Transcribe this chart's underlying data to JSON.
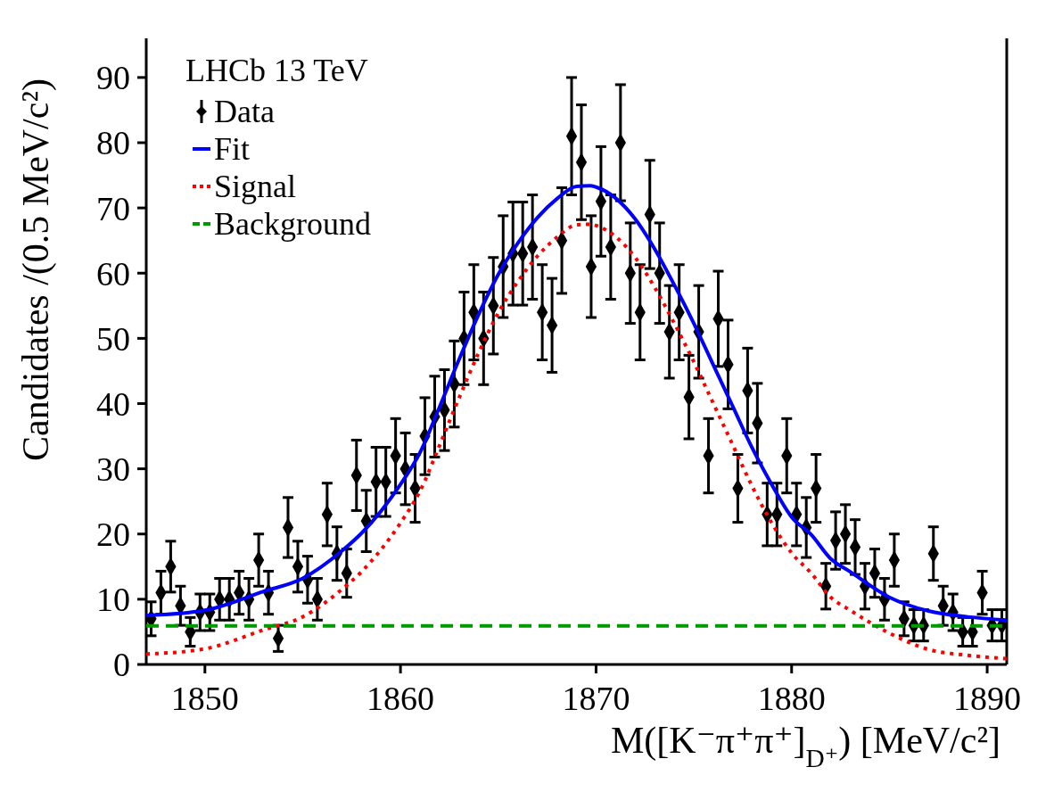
{
  "chart_data": {
    "type": "line",
    "xlabel": "M([K⁻π⁺π⁺]$_{D⁺}$) [MeV/c²]",
    "ylabel": "Candidates /(0.5 MeV/c²)",
    "legend_title": "LHCb 13 TeV",
    "legend": "top left",
    "grid": false,
    "xlim": [
      1847,
      1891
    ],
    "xticks": [
      1850,
      1860,
      1870,
      1880,
      1890
    ],
    "ylim": [
      0,
      96
    ],
    "yticks": [
      0,
      10,
      20,
      30,
      40,
      50,
      60,
      70,
      80,
      90
    ],
    "series": [
      {
        "name": "Data",
        "type": "scatter",
        "color": "#000000",
        "marker": "diamond",
        "x": [
          1847.25,
          1847.75,
          1848.25,
          1848.75,
          1849.25,
          1849.75,
          1850.25,
          1850.75,
          1851.25,
          1851.75,
          1852.25,
          1852.75,
          1853.25,
          1853.75,
          1854.25,
          1854.75,
          1855.25,
          1855.75,
          1856.25,
          1856.75,
          1857.25,
          1857.75,
          1858.25,
          1858.75,
          1859.25,
          1859.75,
          1860.25,
          1860.75,
          1861.25,
          1861.75,
          1862.25,
          1862.75,
          1863.25,
          1863.75,
          1864.25,
          1864.75,
          1865.25,
          1865.75,
          1866.25,
          1866.75,
          1867.25,
          1867.75,
          1868.25,
          1868.75,
          1869.25,
          1869.75,
          1870.25,
          1870.75,
          1871.25,
          1871.75,
          1872.25,
          1872.75,
          1873.25,
          1873.75,
          1874.25,
          1874.75,
          1875.25,
          1875.75,
          1876.25,
          1876.75,
          1877.25,
          1877.75,
          1878.25,
          1878.75,
          1879.25,
          1879.75,
          1880.25,
          1880.75,
          1881.25,
          1881.75,
          1882.25,
          1882.75,
          1883.25,
          1883.75,
          1884.25,
          1884.75,
          1885.25,
          1885.75,
          1886.25,
          1886.75,
          1887.25,
          1887.75,
          1888.25,
          1888.75,
          1889.25,
          1889.75,
          1890.25,
          1890.75
        ],
        "values": [
          7,
          11,
          15,
          9,
          5,
          8,
          8,
          10,
          10,
          11,
          10,
          16,
          11,
          4,
          21,
          15,
          13,
          10,
          23,
          17,
          14,
          29,
          22,
          28,
          28,
          32,
          30,
          27,
          35,
          38,
          39,
          43,
          50,
          54,
          50,
          55,
          61,
          63,
          63,
          64,
          54,
          52,
          65,
          81,
          77,
          61,
          71,
          64,
          80,
          60,
          54,
          69,
          60,
          51,
          54,
          41,
          51,
          32,
          53,
          46,
          27,
          42,
          37,
          23,
          23,
          32,
          23,
          21,
          27,
          12,
          19,
          20,
          18,
          12,
          14,
          10,
          16,
          7,
          6,
          6,
          17,
          9,
          8,
          5,
          5,
          11,
          6,
          6
        ],
        "errors": [
          2.6,
          3.3,
          3.9,
          3,
          2.2,
          2.8,
          2.8,
          3.2,
          3.2,
          3.3,
          3.2,
          4,
          3.3,
          2,
          4.6,
          3.9,
          3.6,
          3.2,
          4.8,
          4.1,
          3.7,
          5.4,
          4.7,
          5.3,
          5.3,
          5.7,
          5.5,
          5.2,
          5.9,
          6.2,
          6.2,
          6.6,
          7.1,
          7.3,
          7.1,
          7.4,
          7.8,
          7.9,
          7.9,
          8,
          7.3,
          7.2,
          8.1,
          9,
          8.8,
          7.8,
          8.4,
          8,
          8.9,
          7.7,
          7.3,
          8.3,
          7.7,
          7.1,
          7.3,
          6.4,
          7.1,
          5.7,
          7.3,
          6.8,
          5.2,
          6.5,
          6.1,
          4.8,
          4.8,
          5.7,
          4.8,
          4.6,
          5.2,
          3.5,
          4.4,
          4.5,
          4.2,
          3.5,
          3.7,
          3.2,
          4,
          2.6,
          2.4,
          2.4,
          4.1,
          3,
          2.8,
          2.2,
          2.2,
          3.3,
          2.4,
          2.4
        ]
      },
      {
        "name": "Fit",
        "color": "#0000ff",
        "line_style": "solid",
        "x": [
          1847,
          1850,
          1853,
          1855,
          1857,
          1858,
          1859,
          1860,
          1861,
          1862,
          1863,
          1864,
          1865,
          1866,
          1867,
          1868,
          1869,
          1869.7,
          1870,
          1871,
          1872,
          1873,
          1874,
          1875,
          1876,
          1877,
          1878,
          1879,
          1880,
          1881,
          1882,
          1883,
          1885,
          1887,
          1889,
          1891
        ],
        "values": [
          7.5,
          8.3,
          11.2,
          13.2,
          17.4,
          20.1,
          23.5,
          27.6,
          32.5,
          39.5,
          46.8,
          53.7,
          59.8,
          64.6,
          68.5,
          71.4,
          73.3,
          73.4,
          73.2,
          71.5,
          68.3,
          63.7,
          58.2,
          52.3,
          45.9,
          39.5,
          33.1,
          27.5,
          22.6,
          19.9,
          16.2,
          14.2,
          10.3,
          8.2,
          7.3,
          6.8
        ]
      },
      {
        "name": "Signal",
        "color": "#ff0000",
        "line_style": "dotted",
        "x": [
          1847,
          1850,
          1853,
          1855,
          1857,
          1858,
          1859,
          1860,
          1861,
          1862,
          1863,
          1864,
          1865,
          1866,
          1867,
          1868,
          1869,
          1869.7,
          1870,
          1871,
          1872,
          1873,
          1874,
          1875,
          1876,
          1877,
          1878,
          1879,
          1880,
          1881,
          1882,
          1883,
          1885,
          1887,
          1889,
          1891
        ],
        "values": [
          1.6,
          2.4,
          5.3,
          7.3,
          11.5,
          14.2,
          17.6,
          21.7,
          26.6,
          33.6,
          40.9,
          47.8,
          53.9,
          58.7,
          62.6,
          65.5,
          67.4,
          67.5,
          67.3,
          65.6,
          62.4,
          57.8,
          52.3,
          46.4,
          40,
          33.6,
          27.2,
          21.6,
          17.1,
          14,
          10.3,
          8.3,
          4.8,
          2.3,
          1.4,
          0.9
        ]
      },
      {
        "name": "Background",
        "color": "#009900",
        "line_style": "dashed",
        "x": [
          1847,
          1891
        ],
        "values": [
          5.9,
          5.9
        ]
      }
    ]
  }
}
